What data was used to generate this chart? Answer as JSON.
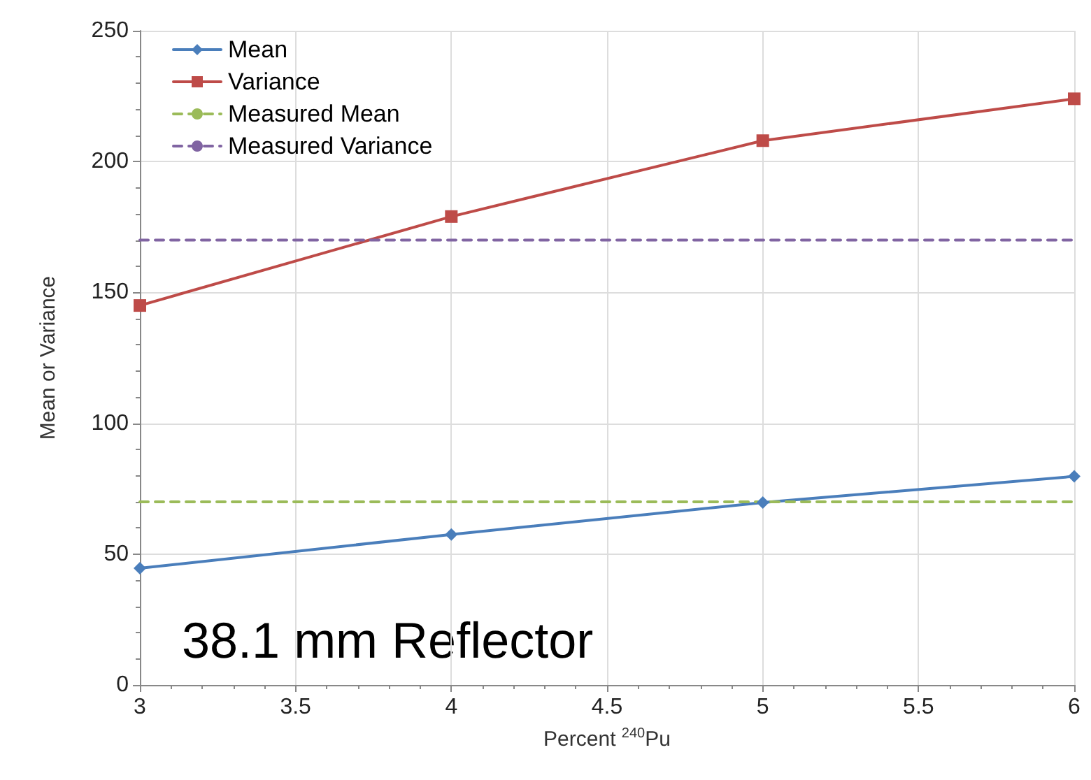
{
  "chart_data": {
    "type": "line",
    "xlabel": "Percent $^{240}$Pu",
    "ylabel": "Mean or Variance",
    "annotations": [
      "38.1 mm Reflector"
    ],
    "x": [
      3,
      4,
      5,
      6
    ],
    "series": [
      {
        "name": "Mean",
        "color": "#4a7ebb",
        "values": [
          44.6,
          57.5,
          69.7,
          79.7
        ],
        "marker": "diamond"
      },
      {
        "name": "Variance",
        "color": "#be4b48",
        "values": [
          145,
          179,
          208,
          224
        ],
        "marker": "square"
      },
      {
        "name": "Measured Mean",
        "color": "#9bbb59",
        "values": [
          70,
          70,
          70,
          70
        ],
        "marker": "none",
        "line_style": "dashed"
      },
      {
        "name": "Measured Variance",
        "color": "#8064a2",
        "values": [
          170,
          170,
          170,
          170
        ],
        "marker": "none",
        "line_style": "dashed"
      }
    ],
    "xlim": [
      3,
      6
    ],
    "xticks": [
      3,
      3.5,
      4,
      4.5,
      5,
      5.5,
      6
    ],
    "ylim": [
      0,
      250
    ],
    "yticks": [
      0,
      50,
      100,
      150,
      200,
      250
    ],
    "grid": true,
    "legend": "top left"
  }
}
